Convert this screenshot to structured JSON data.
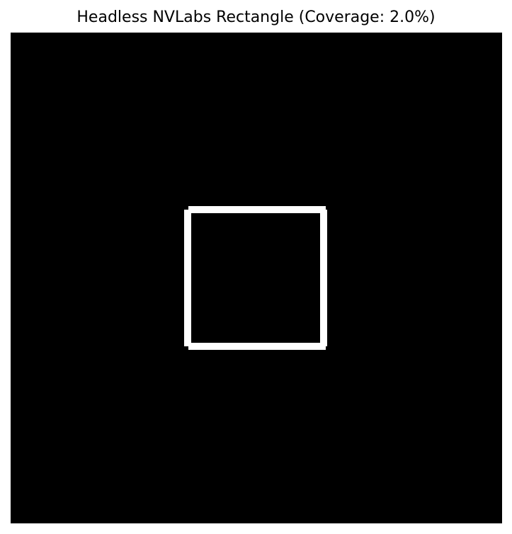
{
  "title": "Headless NVLabs Rectangle (Coverage: 2.0%)",
  "colors": {
    "background": "#000000",
    "shape": "#ffffff",
    "page": "#ffffff"
  },
  "shape": {
    "type": "rectangle-outline"
  }
}
